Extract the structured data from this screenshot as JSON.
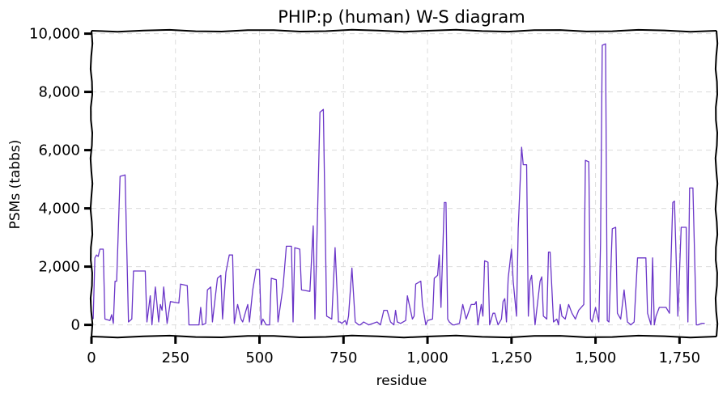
{
  "chart_data": {
    "type": "line",
    "title": "PHIP:p (human) W-S diagram",
    "xlabel": "residue",
    "ylabel": "PSMs (tabbs)",
    "xlim": [
      0,
      1860
    ],
    "ylim": [
      -400,
      10100
    ],
    "x_ticks": [
      0,
      250,
      500,
      750,
      1000,
      1250,
      1500,
      1750
    ],
    "x_tick_labels": [
      "0",
      "250",
      "500",
      "750",
      "1,000",
      "1,250",
      "1,500",
      "1,750"
    ],
    "y_ticks": [
      0,
      2000,
      4000,
      6000,
      8000,
      10000
    ],
    "y_tick_labels": [
      "0",
      "2,000",
      "4,000",
      "6,000",
      "8,000",
      "10,000"
    ],
    "grid": true,
    "colors": {
      "line": "#6a35c8",
      "grid": "#dcdcdc",
      "background": "#ffffff",
      "axes": "#000000"
    },
    "series": [
      {
        "name": "",
        "points": [
          [
            5,
            200
          ],
          [
            10,
            2300
          ],
          [
            15,
            2400
          ],
          [
            20,
            2350
          ],
          [
            25,
            2600
          ],
          [
            35,
            2600
          ],
          [
            40,
            200
          ],
          [
            55,
            150
          ],
          [
            60,
            350
          ],
          [
            65,
            50
          ],
          [
            70,
            1500
          ],
          [
            75,
            1500
          ],
          [
            85,
            5100
          ],
          [
            100,
            5150
          ],
          [
            110,
            100
          ],
          [
            120,
            200
          ],
          [
            125,
            1850
          ],
          [
            160,
            1850
          ],
          [
            165,
            100
          ],
          [
            175,
            1000
          ],
          [
            180,
            0
          ],
          [
            190,
            1300
          ],
          [
            200,
            100
          ],
          [
            205,
            700
          ],
          [
            210,
            500
          ],
          [
            215,
            1300
          ],
          [
            225,
            50
          ],
          [
            235,
            800
          ],
          [
            260,
            750
          ],
          [
            265,
            1400
          ],
          [
            285,
            1350
          ],
          [
            290,
            0
          ],
          [
            320,
            0
          ],
          [
            325,
            600
          ],
          [
            330,
            0
          ],
          [
            340,
            50
          ],
          [
            345,
            1200
          ],
          [
            355,
            1300
          ],
          [
            360,
            100
          ],
          [
            375,
            1600
          ],
          [
            385,
            1700
          ],
          [
            390,
            200
          ],
          [
            400,
            1800
          ],
          [
            410,
            2400
          ],
          [
            420,
            2400
          ],
          [
            425,
            50
          ],
          [
            435,
            700
          ],
          [
            445,
            200
          ],
          [
            450,
            100
          ],
          [
            460,
            500
          ],
          [
            465,
            700
          ],
          [
            470,
            100
          ],
          [
            480,
            1200
          ],
          [
            490,
            1900
          ],
          [
            500,
            1900
          ],
          [
            505,
            0
          ],
          [
            510,
            200
          ],
          [
            520,
            0
          ],
          [
            530,
            0
          ],
          [
            535,
            1600
          ],
          [
            550,
            1550
          ],
          [
            555,
            100
          ],
          [
            570,
            1300
          ],
          [
            580,
            2700
          ],
          [
            595,
            2700
          ],
          [
            600,
            100
          ],
          [
            605,
            2650
          ],
          [
            620,
            2600
          ],
          [
            625,
            1200
          ],
          [
            650,
            1150
          ],
          [
            660,
            3400
          ],
          [
            665,
            200
          ],
          [
            670,
            2500
          ],
          [
            680,
            7300
          ],
          [
            690,
            7400
          ],
          [
            700,
            300
          ],
          [
            715,
            200
          ],
          [
            725,
            2650
          ],
          [
            735,
            100
          ],
          [
            740,
            100
          ],
          [
            745,
            50
          ],
          [
            755,
            150
          ],
          [
            760,
            0
          ],
          [
            765,
            300
          ],
          [
            775,
            1950
          ],
          [
            785,
            100
          ],
          [
            795,
            0
          ],
          [
            800,
            0
          ],
          [
            810,
            100
          ],
          [
            825,
            0
          ],
          [
            850,
            100
          ],
          [
            860,
            0
          ],
          [
            870,
            500
          ],
          [
            880,
            500
          ],
          [
            890,
            100
          ],
          [
            900,
            0
          ],
          [
            905,
            500
          ],
          [
            910,
            100
          ],
          [
            920,
            50
          ],
          [
            935,
            150
          ],
          [
            940,
            1000
          ],
          [
            955,
            200
          ],
          [
            960,
            300
          ],
          [
            965,
            1400
          ],
          [
            980,
            1500
          ],
          [
            985,
            700
          ],
          [
            995,
            0
          ],
          [
            1000,
            150
          ],
          [
            1015,
            200
          ],
          [
            1020,
            1600
          ],
          [
            1030,
            1700
          ],
          [
            1035,
            2400
          ],
          [
            1040,
            600
          ],
          [
            1050,
            4200
          ],
          [
            1055,
            4200
          ],
          [
            1060,
            200
          ],
          [
            1065,
            100
          ],
          [
            1075,
            0
          ],
          [
            1080,
            0
          ],
          [
            1095,
            50
          ],
          [
            1105,
            700
          ],
          [
            1115,
            200
          ],
          [
            1130,
            700
          ],
          [
            1140,
            700
          ],
          [
            1145,
            800
          ],
          [
            1150,
            0
          ],
          [
            1160,
            700
          ],
          [
            1165,
            300
          ],
          [
            1170,
            2200
          ],
          [
            1180,
            2150
          ],
          [
            1185,
            0
          ],
          [
            1195,
            400
          ],
          [
            1200,
            400
          ],
          [
            1210,
            0
          ],
          [
            1220,
            200
          ],
          [
            1225,
            800
          ],
          [
            1230,
            900
          ],
          [
            1235,
            100
          ],
          [
            1240,
            1600
          ],
          [
            1250,
            2600
          ],
          [
            1255,
            1500
          ],
          [
            1265,
            300
          ],
          [
            1270,
            3300
          ],
          [
            1280,
            6100
          ],
          [
            1285,
            5500
          ],
          [
            1295,
            5500
          ],
          [
            1300,
            300
          ],
          [
            1305,
            1500
          ],
          [
            1310,
            1700
          ],
          [
            1320,
            0
          ],
          [
            1335,
            1500
          ],
          [
            1340,
            1650
          ],
          [
            1345,
            300
          ],
          [
            1355,
            200
          ],
          [
            1360,
            2500
          ],
          [
            1365,
            2500
          ],
          [
            1375,
            100
          ],
          [
            1385,
            200
          ],
          [
            1390,
            0
          ],
          [
            1395,
            700
          ],
          [
            1400,
            300
          ],
          [
            1410,
            200
          ],
          [
            1420,
            700
          ],
          [
            1430,
            400
          ],
          [
            1440,
            200
          ],
          [
            1450,
            500
          ],
          [
            1465,
            700
          ],
          [
            1470,
            5650
          ],
          [
            1480,
            5600
          ],
          [
            1485,
            200
          ],
          [
            1490,
            100
          ],
          [
            1500,
            600
          ],
          [
            1510,
            100
          ],
          [
            1515,
            2800
          ],
          [
            1520,
            9600
          ],
          [
            1530,
            9650
          ],
          [
            1535,
            150
          ],
          [
            1540,
            100
          ],
          [
            1550,
            3300
          ],
          [
            1560,
            3350
          ],
          [
            1565,
            400
          ],
          [
            1575,
            200
          ],
          [
            1585,
            1200
          ],
          [
            1595,
            100
          ],
          [
            1600,
            50
          ],
          [
            1605,
            0
          ],
          [
            1615,
            100
          ],
          [
            1625,
            2300
          ],
          [
            1650,
            2300
          ],
          [
            1655,
            400
          ],
          [
            1665,
            0
          ],
          [
            1670,
            2300
          ],
          [
            1675,
            0
          ],
          [
            1680,
            300
          ],
          [
            1690,
            600
          ],
          [
            1710,
            600
          ],
          [
            1720,
            400
          ],
          [
            1730,
            4200
          ],
          [
            1735,
            4250
          ],
          [
            1745,
            300
          ],
          [
            1755,
            3350
          ],
          [
            1770,
            3350
          ],
          [
            1775,
            100
          ],
          [
            1780,
            4700
          ],
          [
            1790,
            4700
          ],
          [
            1800,
            0
          ],
          [
            1805,
            0
          ],
          [
            1815,
            50
          ],
          [
            1825,
            50
          ]
        ]
      }
    ]
  }
}
